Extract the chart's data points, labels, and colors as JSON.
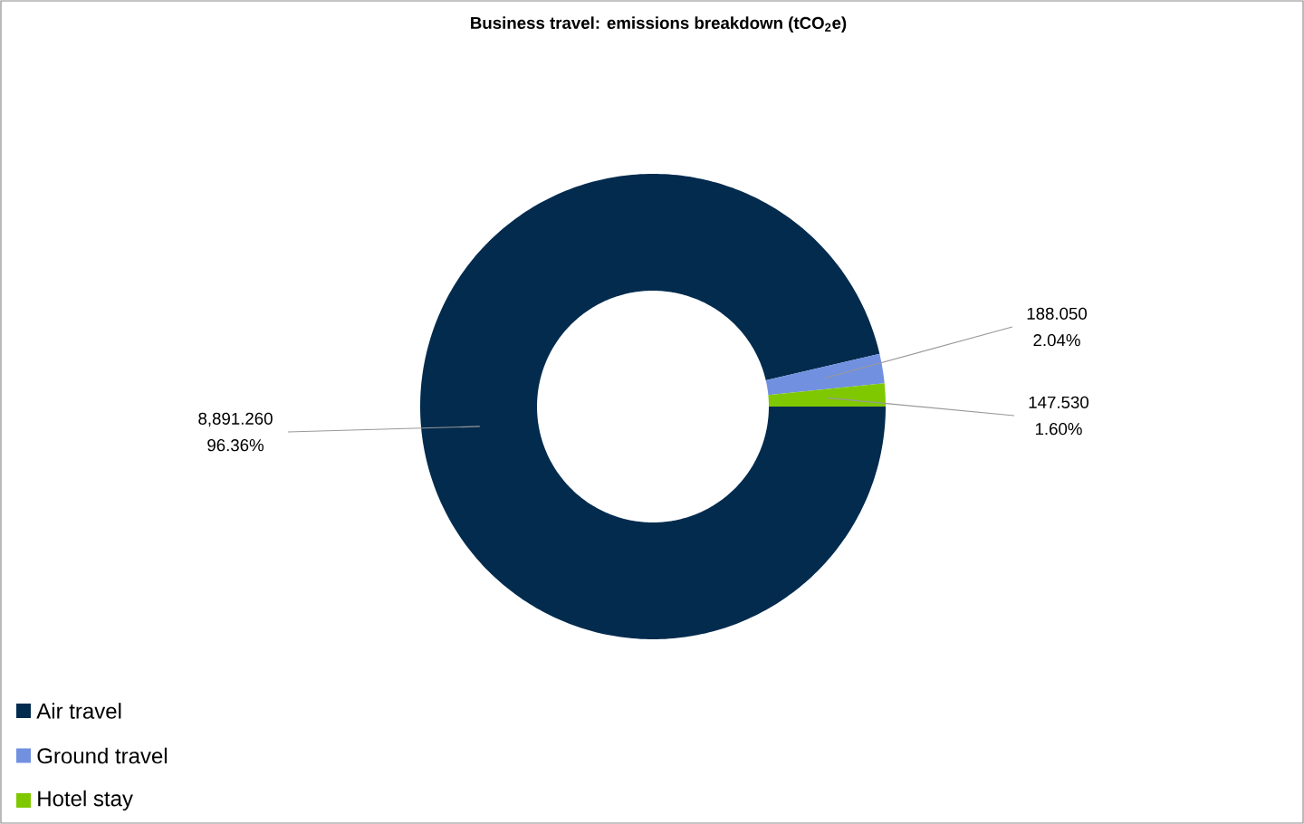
{
  "chart_data": {
    "type": "donut",
    "title": "Business travel: emissions breakdown (tCO$_{2}$e)",
    "categories": [
      "Air travel",
      "Ground travel",
      "Hotel stay"
    ],
    "values": [
      8891.26,
      188.05,
      147.53
    ],
    "colors": [
      "#022b4e",
      "#7190e0",
      "#7fc800"
    ],
    "value_labels": [
      "8,891.260",
      "188.050",
      "147.530"
    ],
    "annotations": [
      "96.36%",
      "2.04%",
      "1.60%"
    ],
    "legend": "bottom left"
  }
}
